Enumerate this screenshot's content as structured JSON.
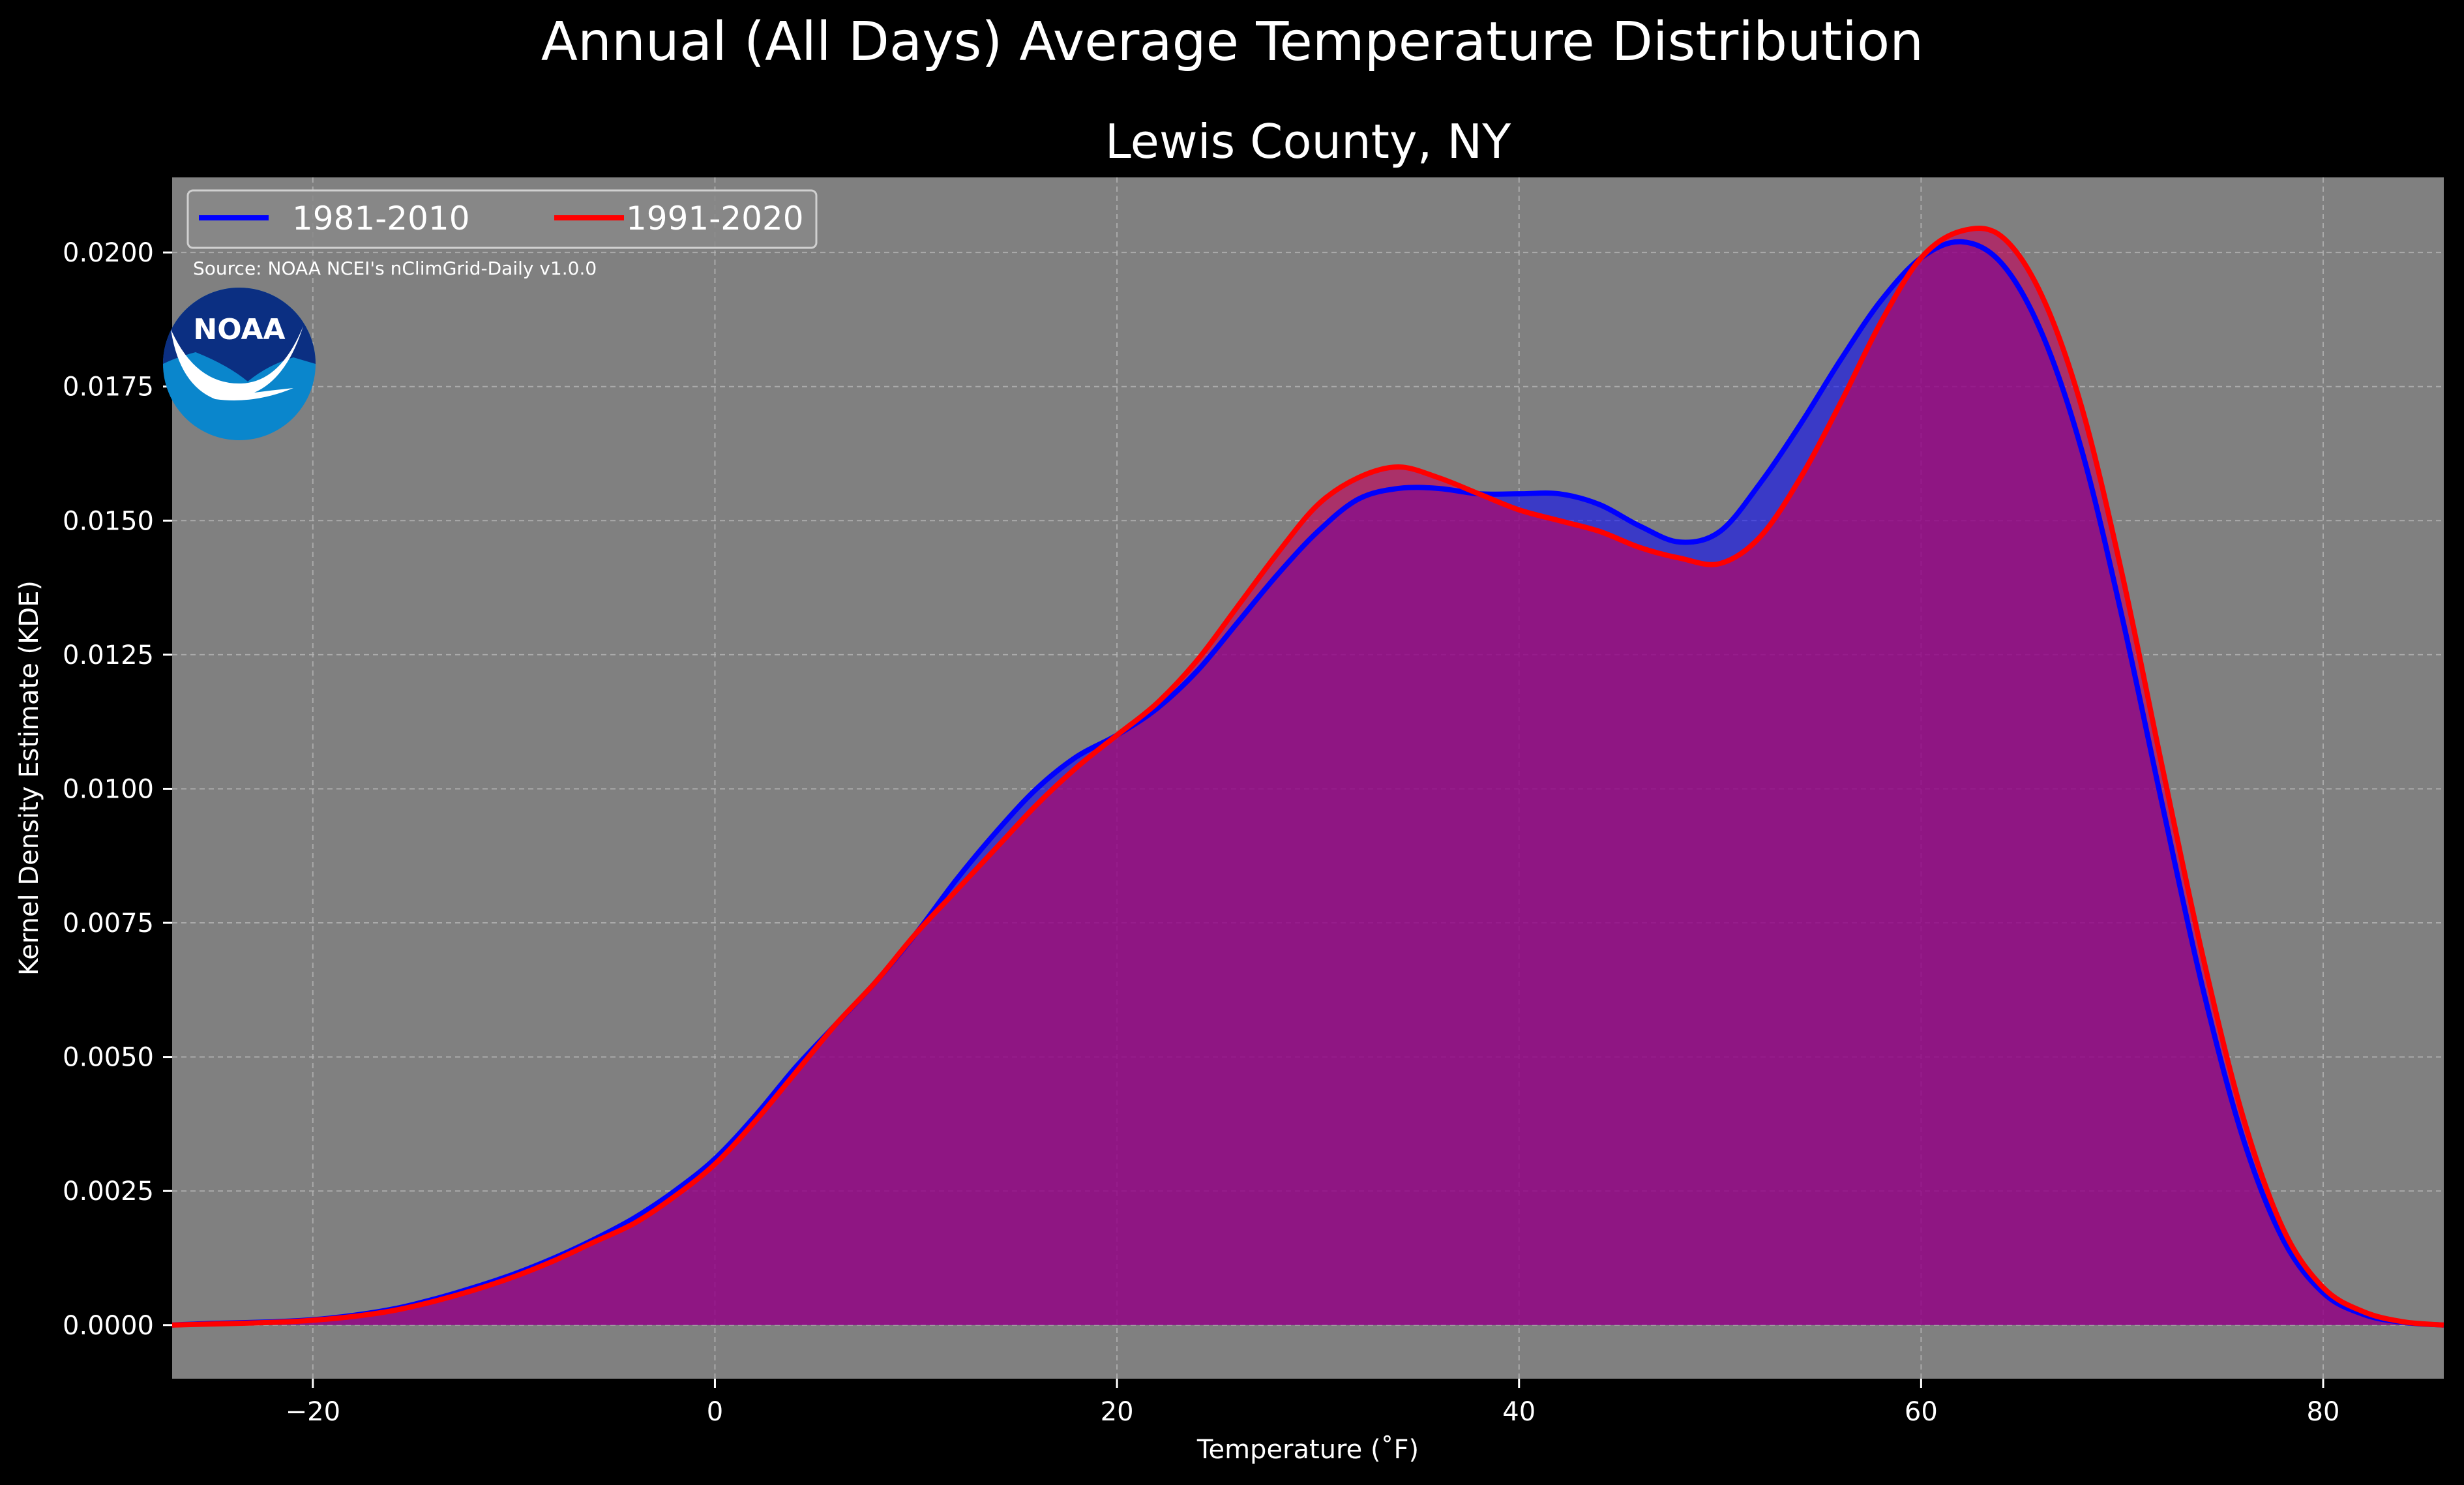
{
  "chart_data": {
    "type": "area",
    "suptitle": "Annual (All Days) Average Temperature Distribution",
    "title": "Lewis County, NY",
    "xlabel": "Temperature ($^\\circ$F)",
    "xlabel_display": "Temperature (˚F)",
    "ylabel": "Kernel Density Estimate (KDE)",
    "xlim": [
      -27,
      86
    ],
    "ylim": [
      -0.001,
      0.0214
    ],
    "xticks": [
      -20,
      0,
      20,
      40,
      60,
      80
    ],
    "xtick_labels": [
      "−20",
      "0",
      "20",
      "40",
      "60",
      "80"
    ],
    "yticks": [
      0.0,
      0.0025,
      0.005,
      0.0075,
      0.01,
      0.0125,
      0.015,
      0.0175,
      0.02
    ],
    "ytick_labels": [
      "0.0000",
      "0.0025",
      "0.0050",
      "0.0075",
      "0.0100",
      "0.0125",
      "0.0150",
      "0.0175",
      "0.0200"
    ],
    "grid": true,
    "legend_placement": "upper-left",
    "source_note": "Source: NOAA NCEI's nClimGrid-Daily v1.0.0",
    "logo_text": "NOAA",
    "colors": {
      "figure_background": "#000000",
      "plot_background": "#808080",
      "series_1981": "#0000ff",
      "series_1991": "#ff0000",
      "fill_1981": "#3a36c4",
      "fill_1991": "#9e1e5c",
      "noaa_dark": "#0b2f82",
      "noaa_light": "#0a86cc"
    },
    "series": [
      {
        "name": "1981-2010",
        "color": "#0000ff",
        "x": [
          -27,
          -25,
          -22,
          -20,
          -18,
          -16,
          -14,
          -12,
          -10,
          -8,
          -6,
          -4,
          -2,
          0,
          2,
          4,
          6,
          8,
          10,
          12,
          14,
          16,
          18,
          20,
          22,
          24,
          26,
          28,
          30,
          32,
          34,
          36,
          38,
          40,
          42,
          44,
          46,
          48,
          50,
          52,
          54,
          56,
          58,
          60,
          62,
          64,
          66,
          68,
          70,
          72,
          74,
          76,
          78,
          80,
          82,
          84,
          86
        ],
        "y": [
          0.0,
          3e-05,
          6e-05,
          0.0001,
          0.00018,
          0.0003,
          0.00048,
          0.0007,
          0.00095,
          0.00125,
          0.0016,
          0.002,
          0.0025,
          0.0031,
          0.0039,
          0.0048,
          0.0056,
          0.0064,
          0.0073,
          0.0083,
          0.0092,
          0.01,
          0.0106,
          0.011,
          0.0115,
          0.0122,
          0.0131,
          0.014,
          0.0148,
          0.0154,
          0.0156,
          0.0156,
          0.0155,
          0.0155,
          0.0155,
          0.0153,
          0.0149,
          0.0146,
          0.0148,
          0.0157,
          0.0168,
          0.018,
          0.0191,
          0.0199,
          0.0202,
          0.0198,
          0.0185,
          0.0163,
          0.0132,
          0.0097,
          0.0063,
          0.0035,
          0.0016,
          0.0006,
          0.0002,
          5e-05,
          0.0
        ]
      },
      {
        "name": "1991-2020",
        "color": "#ff0000",
        "x": [
          -27,
          -25,
          -22,
          -20,
          -18,
          -16,
          -14,
          -12,
          -10,
          -8,
          -6,
          -4,
          -2,
          0,
          2,
          4,
          6,
          8,
          10,
          12,
          14,
          16,
          18,
          20,
          22,
          24,
          26,
          28,
          30,
          32,
          34,
          36,
          38,
          40,
          42,
          44,
          46,
          48,
          50,
          52,
          54,
          56,
          58,
          60,
          62,
          64,
          66,
          68,
          70,
          72,
          74,
          76,
          78,
          80,
          82,
          84,
          86
        ],
        "y": [
          0.0,
          2e-05,
          5e-05,
          9e-05,
          0.00016,
          0.00027,
          0.00044,
          0.00065,
          0.0009,
          0.0012,
          0.00155,
          0.0019,
          0.0024,
          0.003,
          0.0038,
          0.0047,
          0.0056,
          0.0064,
          0.0073,
          0.0081,
          0.0089,
          0.0097,
          0.0104,
          0.011,
          0.0116,
          0.0124,
          0.0134,
          0.0144,
          0.0153,
          0.0158,
          0.016,
          0.0158,
          0.0155,
          0.0152,
          0.015,
          0.0148,
          0.0145,
          0.0143,
          0.0142,
          0.0147,
          0.0158,
          0.0172,
          0.0187,
          0.0199,
          0.0204,
          0.0203,
          0.0192,
          0.0171,
          0.014,
          0.0104,
          0.0069,
          0.0039,
          0.0018,
          0.0007,
          0.00025,
          6e-05,
          0.0
        ]
      }
    ]
  }
}
